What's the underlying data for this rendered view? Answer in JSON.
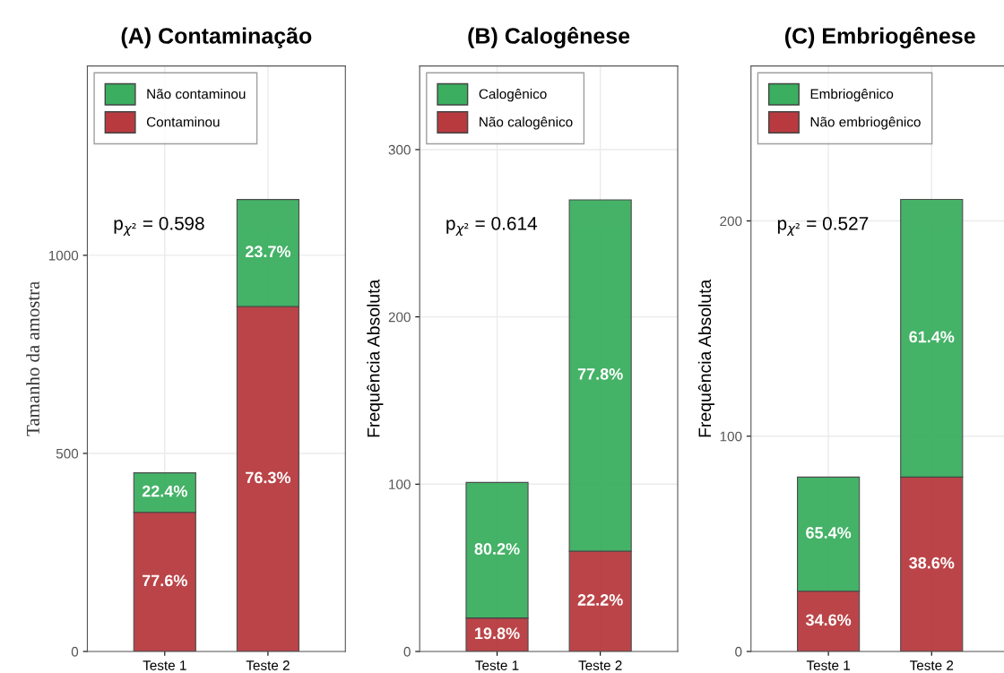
{
  "chart_data": [
    {
      "type": "bar",
      "title": "(A) Contaminação",
      "ylabel": "Tamanho da amostra",
      "categories": [
        "Teste 1",
        "Teste 2"
      ],
      "stacked": true,
      "ylim": [
        0,
        1478
      ],
      "yticks": [
        0,
        500,
        1000
      ],
      "grid": true,
      "legend": "top left",
      "annotations": [
        "p$_{χ²}$ = 0.598",
        "77.6%",
        "76.3%",
        "22.4%",
        "23.7%"
      ],
      "series": [
        {
          "name": "Contaminou",
          "color": "#b83a3f",
          "values": [
            351,
            871
          ]
        },
        {
          "name": "Não contaminou",
          "color": "#3bae5f",
          "values": [
            100,
            270
          ]
        }
      ]
    },
    {
      "type": "bar",
      "title": "(B) Calogênese",
      "ylabel": "Frequência Absoluta",
      "categories": [
        "Teste 1",
        "Teste 2"
      ],
      "stacked": true,
      "ylim": [
        0,
        350
      ],
      "yticks": [
        0,
        100,
        200,
        300
      ],
      "grid": true,
      "legend": "top left",
      "annotations": [
        "p$_{χ²}$ = 0.614",
        "19.8%",
        "22.2%",
        "80.2%",
        "77.8%"
      ],
      "series": [
        {
          "name": "Não calogênico",
          "color": "#b83a3f",
          "values": [
            20,
            60
          ]
        },
        {
          "name": "Calogênico",
          "color": "#3bae5f",
          "values": [
            81,
            210
          ]
        }
      ]
    },
    {
      "type": "bar",
      "title": "(C) Embriogênese",
      "ylabel": "Frequência Absoluta",
      "categories": [
        "Teste 1",
        "Teste 2"
      ],
      "stacked": true,
      "ylim": [
        0,
        272
      ],
      "yticks": [
        0,
        100,
        200
      ],
      "grid": true,
      "legend": "top left",
      "annotations": [
        "p$_{χ²}$ = 0.527",
        "34.6%",
        "38.6%",
        "65.4%",
        "61.4%"
      ],
      "series": [
        {
          "name": "Não embriogênico",
          "color": "#b83a3f",
          "values": [
            28,
            81
          ]
        },
        {
          "name": "Embriogênico",
          "color": "#3bae5f",
          "values": [
            53,
            129
          ]
        }
      ]
    }
  ]
}
